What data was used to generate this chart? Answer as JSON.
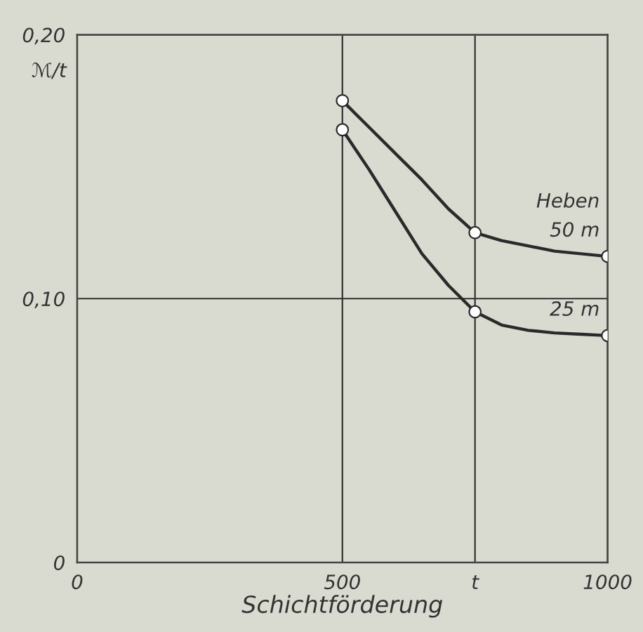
{
  "chart_data": {
    "type": "line",
    "xlabel": "Schichtförderung",
    "ylabel": "ℳ/t",
    "annotations": [
      "Heben"
    ],
    "series": [
      {
        "name": "50 m",
        "color": "#2a2a2a",
        "marker": "none",
        "x": [
          500,
          550,
          600,
          650,
          700,
          750,
          800,
          850,
          900,
          950,
          1000
        ],
        "values": [
          0.175,
          0.165,
          0.155,
          0.145,
          0.134,
          0.125,
          0.122,
          0.12,
          0.118,
          0.117,
          0.116
        ]
      },
      {
        "name": "25 m",
        "color": "#2a2a2a",
        "marker": "none",
        "x": [
          500,
          550,
          600,
          650,
          700,
          750,
          800,
          850,
          900,
          950,
          1000
        ],
        "values": [
          0.164,
          0.149,
          0.133,
          0.117,
          0.105,
          0.095,
          0.09,
          0.088,
          0.087,
          0.0865,
          0.086
        ]
      },
      {
        "type": "scatter",
        "color": "#2a2a2a",
        "marker": "circle",
        "x": [
          500,
          750,
          1000,
          500,
          750,
          1000
        ],
        "values": [
          0.175,
          0.125,
          0.116,
          0.164,
          0.095,
          0.086
        ]
      }
    ],
    "xlim": [
      0,
      1000
    ],
    "ylim": [
      0,
      0.2
    ],
    "xticks": [
      0,
      500,
      {
        "value": 750,
        "label": "t"
      },
      1000
    ],
    "yticks": [
      {
        "value": 0,
        "label": "0"
      },
      {
        "value": 0.1,
        "label": "0,10"
      },
      {
        "value": 0.2,
        "label": "0,20"
      }
    ],
    "grid": true,
    "line_style": "solid"
  }
}
